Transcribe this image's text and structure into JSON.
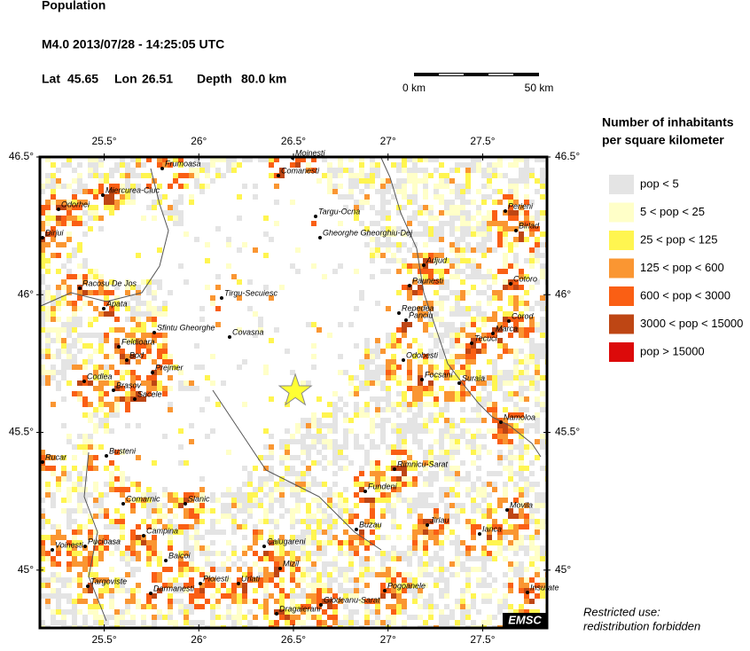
{
  "header": {
    "title": "Population",
    "event": "M4.0  2013/07/28 - 14:25:05 UTC",
    "lat_label": "Lat",
    "lat": 45.65,
    "lon_label": "Lon",
    "lon": 26.51,
    "depth_label": "Depth",
    "depth": "80.0 km"
  },
  "scale_bar": {
    "start": "0 km",
    "end": "50 km"
  },
  "map": {
    "lon_range": [
      25.16,
      27.84
    ],
    "lat_range": [
      44.79,
      46.5
    ],
    "xticks": [
      {
        "value": 25.5,
        "label": "25.5°"
      },
      {
        "value": 26,
        "label": "26°"
      },
      {
        "value": 26.5,
        "label": "26.5°"
      },
      {
        "value": 27,
        "label": "27°"
      },
      {
        "value": 27.5,
        "label": "27.5°"
      }
    ],
    "yticks": [
      {
        "value": 46.5,
        "label": "46.5°"
      },
      {
        "value": 46,
        "label": "46°"
      },
      {
        "value": 45.5,
        "label": "45.5°"
      },
      {
        "value": 45,
        "label": "45°"
      }
    ],
    "cities": [
      "Moinesti",
      "Comanesti",
      "Frumoasa",
      "Miercurea-Ciuc",
      "Targu-Ocna",
      "Perieni",
      "Odorhei",
      "Dirjui",
      "Gheorghe Gheorghiu-Dej",
      "Birlad",
      "Adjud",
      "Racosu De Jos",
      "Paunesti",
      "Cotoro",
      "Tirgu-Secuiesc",
      "Apata",
      "Repedea",
      "Panciu",
      "Corod",
      "Sfintu Gheorghe",
      "Marca",
      "Covasna",
      "Feldioara",
      "Tecuci",
      "Bod",
      "Odobesti",
      "Prejmer",
      "Codlea",
      "Brasov",
      "Focsani",
      "Suraia",
      "Sacele",
      "Namoloa",
      "Rucar",
      "Busteni",
      "Rimnicu-Sarat",
      "Fundeni",
      "Comarnic",
      "Slanic",
      "Movila",
      "Jirlau",
      "Buzau",
      "Campina",
      "Ianca",
      "Pucioasa",
      "Voinesti",
      "Calugareni",
      "Baicoi",
      "Mizil",
      "Urlati",
      "Ploiesti",
      "Targoviste",
      "Darmanesti",
      "Pogoanele",
      "Insurate",
      "Glodeanu-Sarat",
      "Dragaierani"
    ]
  },
  "legend": {
    "title": [
      "Number of inhabitants",
      "per square kilometer"
    ],
    "items": [
      {
        "label": "pop < 5",
        "color": "#e4e4e4"
      },
      {
        "label": "5 < pop < 25",
        "color": "#ffffc8"
      },
      {
        "label": "25 < pop < 125",
        "color": "#fff550"
      },
      {
        "label": "125 < pop < 600",
        "color": "#fa9632"
      },
      {
        "label": "600 < pop < 3000",
        "color": "#fa5f14"
      },
      {
        "label": "3000 < pop < 15000",
        "color": "#be4614"
      },
      {
        "label": "pop > 15000",
        "color": "#dc0a0a"
      }
    ]
  },
  "footer": {
    "note": [
      "Restricted use:",
      "redistribution forbidden"
    ],
    "logo": "EMSC"
  }
}
